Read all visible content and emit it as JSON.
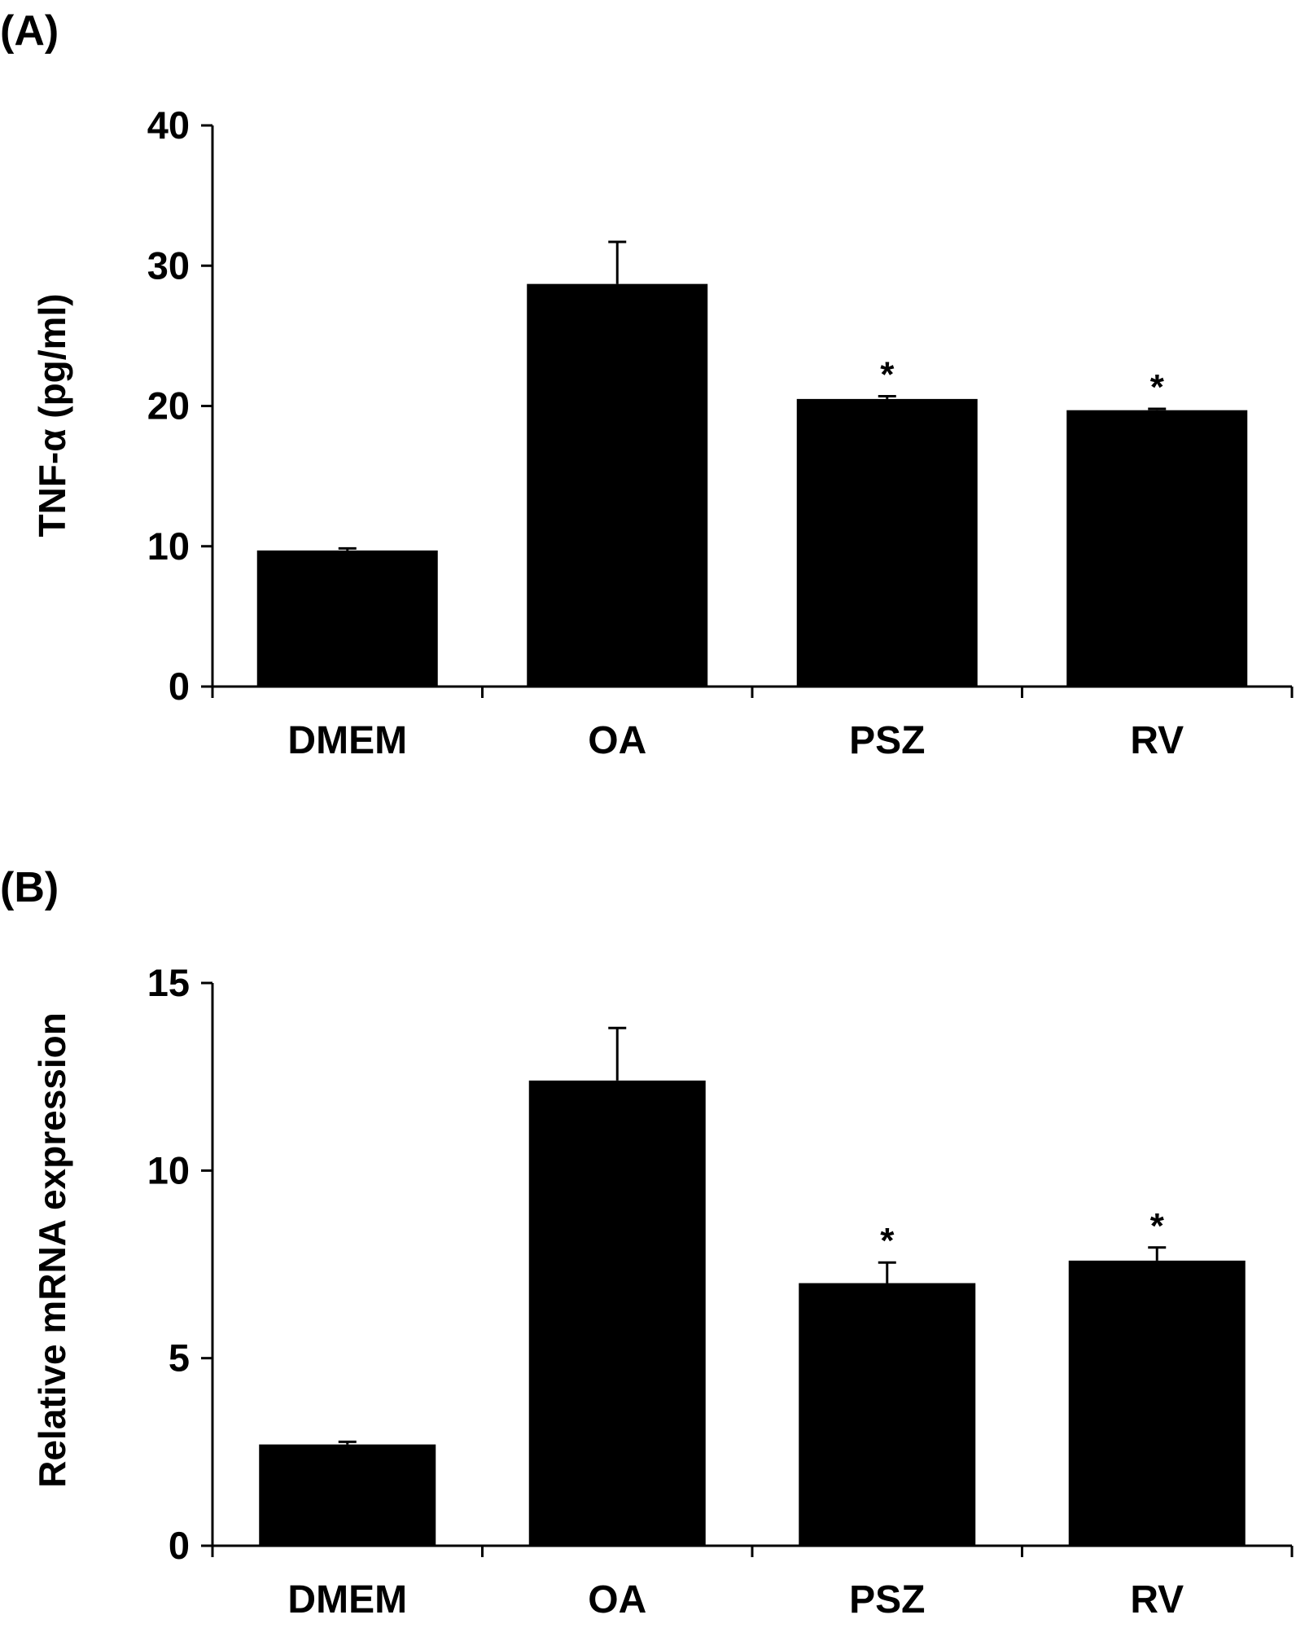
{
  "chart_data": [
    {
      "panel": "(A)",
      "type": "bar",
      "title": "",
      "xlabel": "",
      "ylabel": "TNF-α (pg/ml)",
      "categories": [
        "DMEM",
        "OA",
        "PSZ",
        "RV"
      ],
      "values": [
        9.7,
        28.7,
        20.5,
        19.7
      ],
      "errors": [
        0.15,
        3.0,
        0.2,
        0.1
      ],
      "significance": [
        "",
        "",
        "*",
        "*"
      ],
      "ylim": [
        0,
        40
      ],
      "yticks": [
        0,
        10,
        20,
        30,
        40
      ],
      "bar_color": "#000000",
      "grid": false
    },
    {
      "panel": "(B)",
      "type": "bar",
      "title": "",
      "xlabel": "",
      "ylabel": "Relative mRNA expression",
      "categories": [
        "DMEM",
        "OA",
        "PSZ",
        "RV"
      ],
      "values": [
        2.7,
        12.4,
        7.0,
        7.6
      ],
      "errors": [
        0.07,
        1.4,
        0.55,
        0.35
      ],
      "significance": [
        "",
        "",
        "*",
        "*"
      ],
      "ylim": [
        0,
        15
      ],
      "yticks": [
        0,
        5,
        10,
        15
      ],
      "bar_color": "#000000",
      "grid": false
    }
  ]
}
